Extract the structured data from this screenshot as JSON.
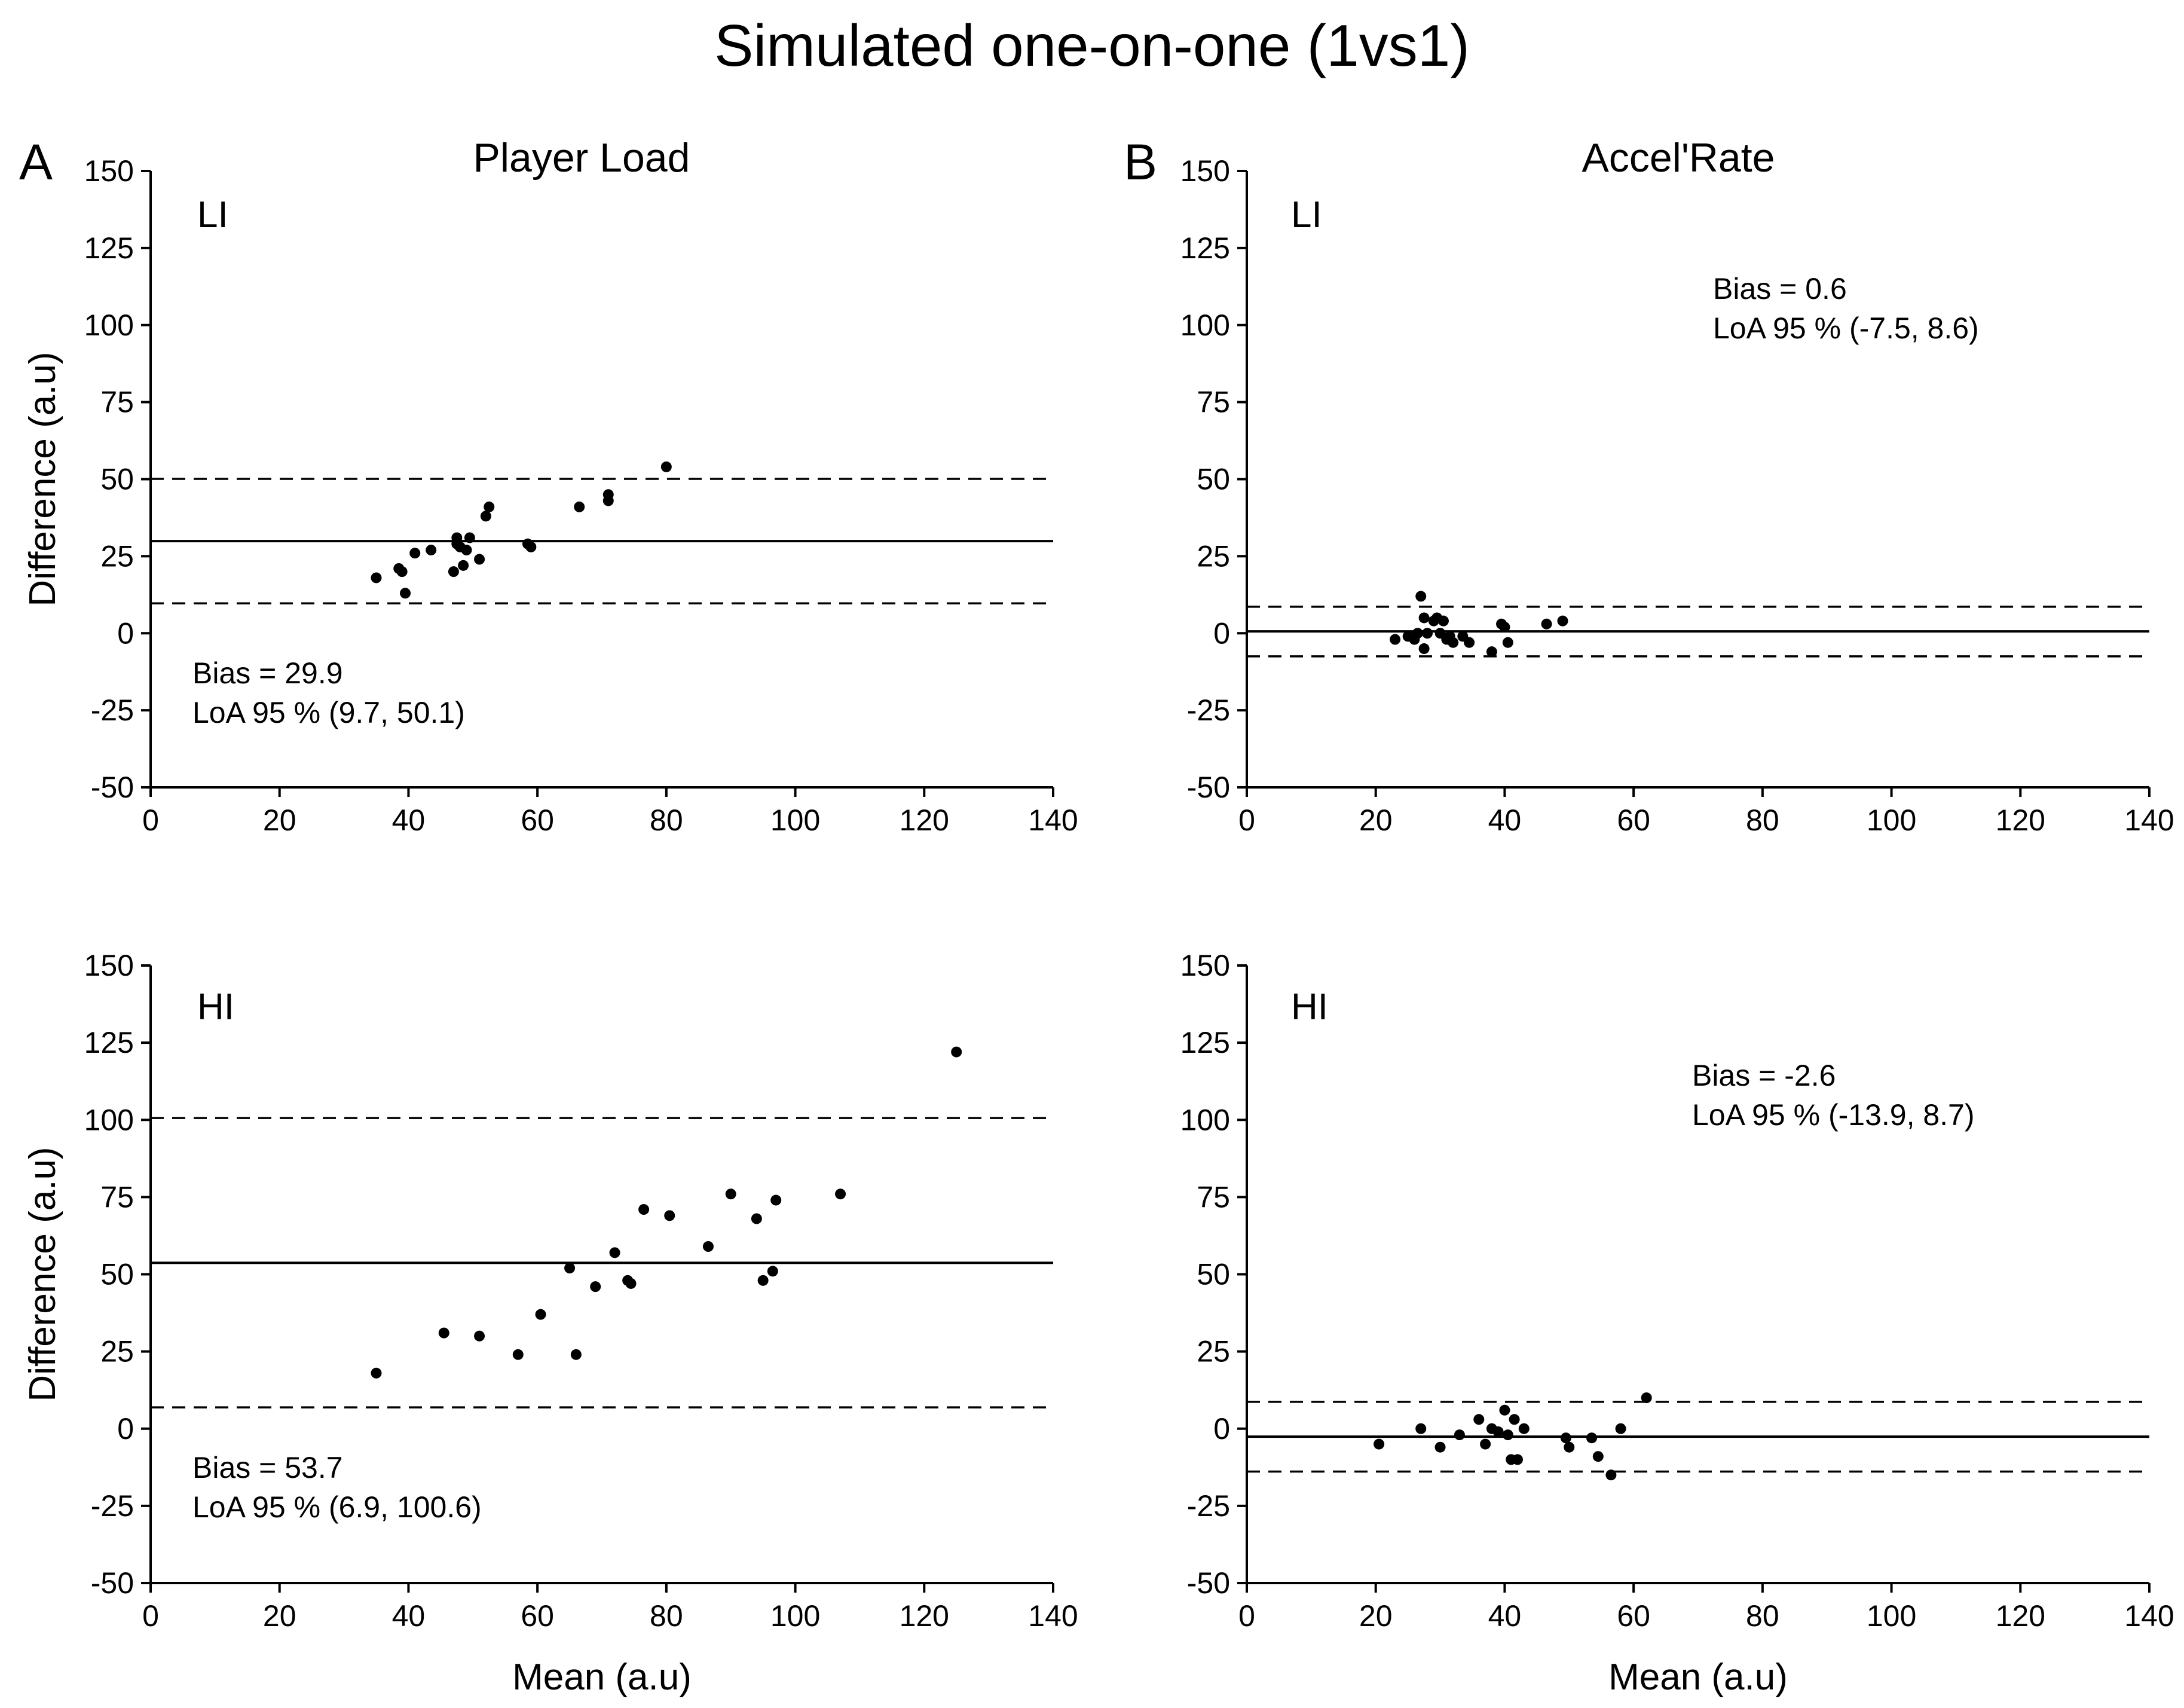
{
  "figure_title": "Simulated one-on-one (1vs1)",
  "column_titles": [
    "Player Load",
    "Accel'Rate"
  ],
  "panel_letters": [
    "A",
    "B"
  ],
  "chart_data": [
    {
      "type": "scatter",
      "id": "player-load-li",
      "panel_label": "LI",
      "xlabel": "",
      "ylabel": "Difference (a.u)",
      "xlim": [
        0,
        140
      ],
      "ylim": [
        -50,
        150
      ],
      "xticks": [
        0,
        20,
        40,
        60,
        80,
        100,
        120,
        140
      ],
      "yticks": [
        -50,
        -25,
        0,
        25,
        50,
        75,
        100,
        125,
        150
      ],
      "bias": 29.9,
      "loa": [
        9.7,
        50.1
      ],
      "annotation": {
        "bias_text": "Bias = 29.9",
        "loa_text": "LoA 95 % (9.7, 50.1)"
      },
      "points": [
        [
          35,
          18
        ],
        [
          38.5,
          21
        ],
        [
          39,
          20
        ],
        [
          39.5,
          13
        ],
        [
          41,
          26
        ],
        [
          43.5,
          27
        ],
        [
          47,
          20
        ],
        [
          47.5,
          31
        ],
        [
          47.5,
          29
        ],
        [
          48,
          28
        ],
        [
          48.5,
          22
        ],
        [
          49,
          27
        ],
        [
          49.5,
          31
        ],
        [
          51,
          24
        ],
        [
          52,
          38
        ],
        [
          52.5,
          41
        ],
        [
          58.5,
          29
        ],
        [
          59,
          28
        ],
        [
          66.5,
          41
        ],
        [
          71,
          45
        ],
        [
          71,
          43
        ],
        [
          80,
          54
        ]
      ]
    },
    {
      "type": "scatter",
      "id": "accel-rate-li",
      "panel_label": "LI",
      "xlabel": "",
      "ylabel": "",
      "xlim": [
        0,
        140
      ],
      "ylim": [
        -50,
        150
      ],
      "xticks": [
        0,
        20,
        40,
        60,
        80,
        100,
        120,
        140
      ],
      "yticks": [
        -50,
        -25,
        0,
        25,
        50,
        75,
        100,
        125,
        150
      ],
      "bias": 0.6,
      "loa": [
        -7.5,
        8.6
      ],
      "annotation": {
        "bias_text": "Bias = 0.6",
        "loa_text": "LoA 95 % (-7.5, 8.6)"
      },
      "points": [
        [
          23,
          -2
        ],
        [
          25,
          -1
        ],
        [
          26,
          -2
        ],
        [
          26.5,
          0
        ],
        [
          27,
          12
        ],
        [
          27.5,
          5
        ],
        [
          27.5,
          -5
        ],
        [
          28,
          0
        ],
        [
          29,
          4
        ],
        [
          29.5,
          5
        ],
        [
          30,
          0
        ],
        [
          30.5,
          4
        ],
        [
          31,
          -2
        ],
        [
          31.5,
          -1
        ],
        [
          32,
          -3
        ],
        [
          33.5,
          -1
        ],
        [
          34.5,
          -3
        ],
        [
          38,
          -6
        ],
        [
          39.5,
          3
        ],
        [
          40,
          2
        ],
        [
          40.5,
          -3
        ],
        [
          46.5,
          3
        ],
        [
          49,
          4
        ]
      ]
    },
    {
      "type": "scatter",
      "id": "player-load-hi",
      "panel_label": "HI",
      "xlabel": "Mean (a.u)",
      "ylabel": "Difference (a.u)",
      "xlim": [
        0,
        140
      ],
      "ylim": [
        -50,
        150
      ],
      "xticks": [
        0,
        20,
        40,
        60,
        80,
        100,
        120,
        140
      ],
      "yticks": [
        -50,
        -25,
        0,
        25,
        50,
        75,
        100,
        125,
        150
      ],
      "bias": 53.7,
      "loa": [
        6.9,
        100.6
      ],
      "annotation": {
        "bias_text": "Bias = 53.7",
        "loa_text": "LoA 95 % (6.9, 100.6)"
      },
      "points": [
        [
          35,
          18
        ],
        [
          45.5,
          31
        ],
        [
          51,
          30
        ],
        [
          57,
          24
        ],
        [
          60.5,
          37
        ],
        [
          65,
          52
        ],
        [
          66,
          24
        ],
        [
          69,
          46
        ],
        [
          72,
          57
        ],
        [
          74,
          48
        ],
        [
          74.5,
          47
        ],
        [
          76.5,
          71
        ],
        [
          80.5,
          69
        ],
        [
          86.5,
          59
        ],
        [
          90,
          76
        ],
        [
          94,
          68
        ],
        [
          95,
          48
        ],
        [
          96.5,
          51
        ],
        [
          97,
          74
        ],
        [
          107,
          76
        ],
        [
          125,
          122
        ]
      ]
    },
    {
      "type": "scatter",
      "id": "accel-rate-hi",
      "panel_label": "HI",
      "xlabel": "Mean (a.u)",
      "ylabel": "",
      "xlim": [
        0,
        140
      ],
      "ylim": [
        -50,
        150
      ],
      "xticks": [
        0,
        20,
        40,
        60,
        80,
        100,
        120,
        140
      ],
      "yticks": [
        -50,
        -25,
        0,
        25,
        50,
        75,
        100,
        125,
        150
      ],
      "bias": -2.6,
      "loa": [
        -13.9,
        8.7
      ],
      "annotation": {
        "bias_text": "Bias = -2.6",
        "loa_text": "LoA 95 % (-13.9, 8.7)"
      },
      "points": [
        [
          20.5,
          -5
        ],
        [
          27,
          0
        ],
        [
          30,
          -6
        ],
        [
          33,
          -2
        ],
        [
          36,
          3
        ],
        [
          37,
          -5
        ],
        [
          38,
          0
        ],
        [
          39,
          -1
        ],
        [
          40,
          6
        ],
        [
          40.5,
          -2
        ],
        [
          41,
          -10
        ],
        [
          41.5,
          3
        ],
        [
          42,
          -10
        ],
        [
          43,
          0
        ],
        [
          49.5,
          -3
        ],
        [
          50,
          -6
        ],
        [
          53.5,
          -3
        ],
        [
          54.5,
          -9
        ],
        [
          56.5,
          -15
        ],
        [
          58,
          0
        ],
        [
          62,
          10
        ]
      ]
    }
  ]
}
